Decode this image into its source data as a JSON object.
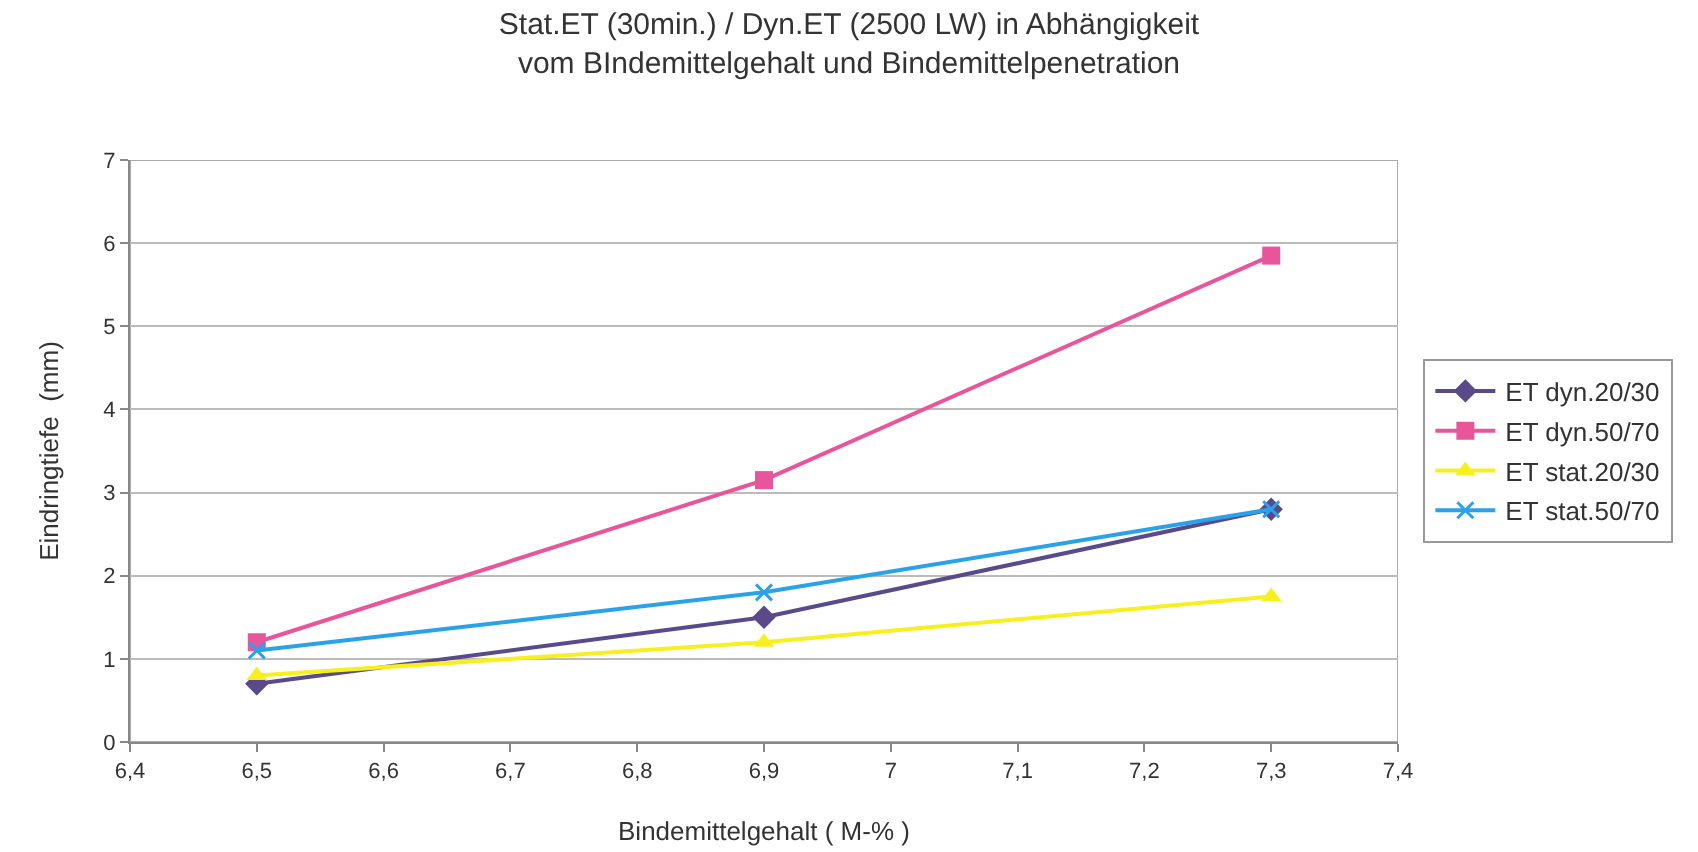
{
  "chart_data": {
    "type": "line",
    "title": "Stat.ET (30min.) / Dyn.ET (2500 LW) in Abhängigkeit\nvom BIndemittelgehalt und Bindemittelpenetration",
    "xlabel": "Bindemittelgehalt ( M-% )",
    "ylabel": "Eindringtiefe  (mm)",
    "x": [
      6.5,
      6.9,
      7.3
    ],
    "series": [
      {
        "name": "ET dyn.20/30",
        "color": "#5a4a8a",
        "marker": "diamond",
        "values": [
          0.7,
          1.5,
          2.8
        ]
      },
      {
        "name": "ET dyn.50/70",
        "color": "#e8559a",
        "marker": "square",
        "values": [
          1.2,
          3.15,
          5.85
        ]
      },
      {
        "name": "ET stat.20/30",
        "color": "#f5f01e",
        "marker": "triangle",
        "values": [
          0.8,
          1.2,
          1.75
        ]
      },
      {
        "name": "ET stat.50/70",
        "color": "#2aa2ea",
        "marker": "cross",
        "values": [
          1.1,
          1.8,
          2.8
        ]
      }
    ],
    "xlim": [
      6.4,
      7.4
    ],
    "xticks": [
      {
        "value": 6.4,
        "label": "6,4"
      },
      {
        "value": 6.5,
        "label": "6,5"
      },
      {
        "value": 6.6,
        "label": "6,6"
      },
      {
        "value": 6.7,
        "label": "6,7"
      },
      {
        "value": 6.8,
        "label": "6,8"
      },
      {
        "value": 6.9,
        "label": "6,9"
      },
      7,
      {
        "value": 7.1,
        "label": "7,1"
      },
      {
        "value": 7.2,
        "label": "7,2"
      },
      {
        "value": 7.3,
        "label": "7,3"
      },
      {
        "value": 7.4,
        "label": "7,4"
      }
    ],
    "ylim": [
      0,
      7
    ],
    "yticks": [
      0,
      1,
      2,
      3,
      4,
      5,
      6,
      7
    ],
    "grid": "y",
    "legend": "right",
    "line_style": "solid"
  }
}
